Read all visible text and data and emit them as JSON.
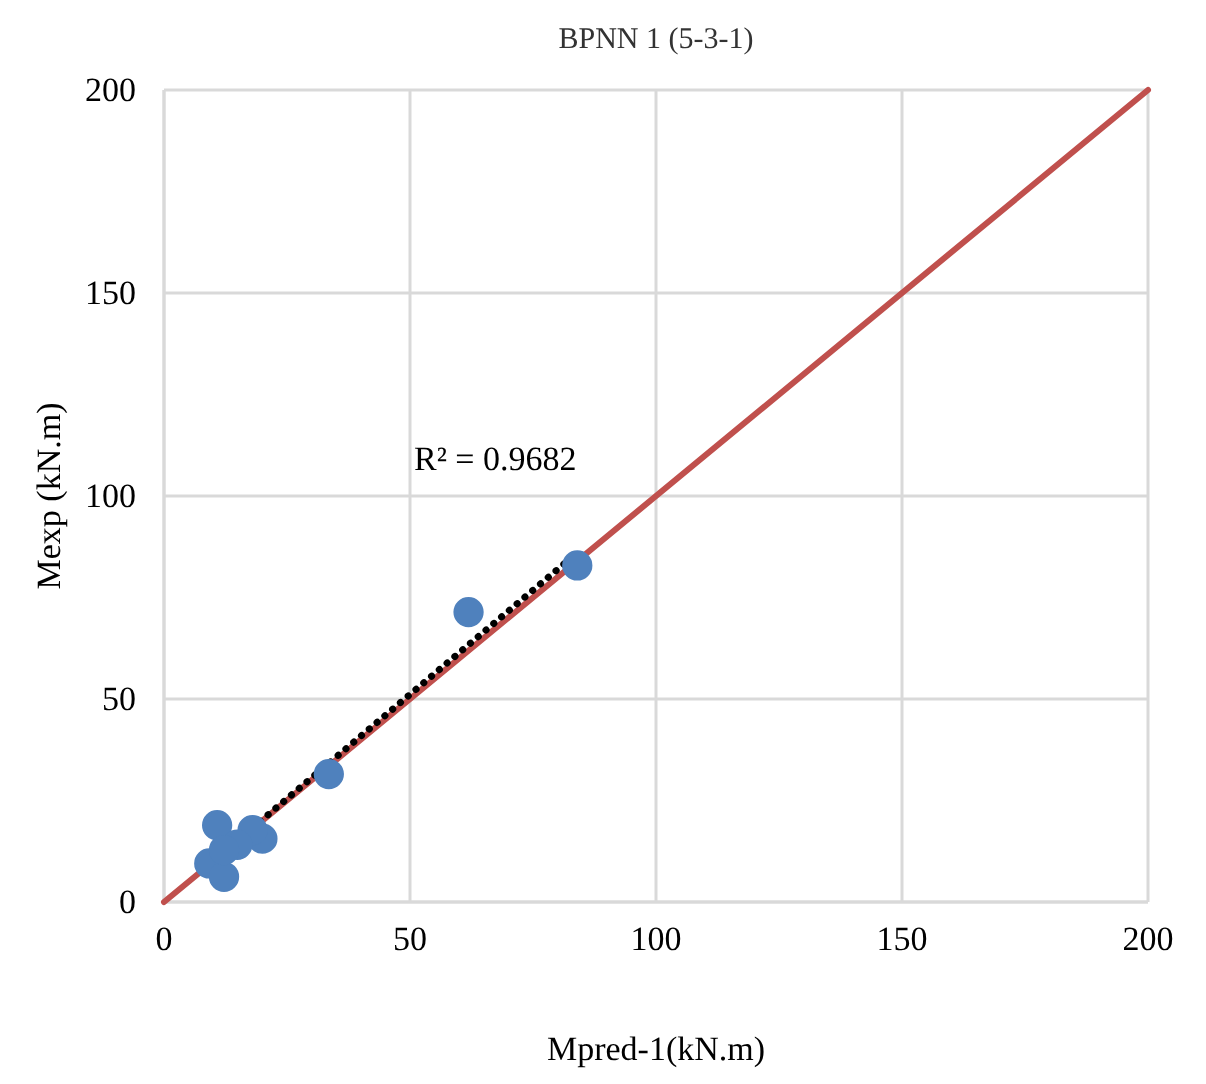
{
  "chart_data": {
    "type": "scatter",
    "title": "BPNN 1 (5-3-1)",
    "xlabel": "Mpred-1(kN.m)",
    "ylabel": "Mexp (kN.m)",
    "xlim": [
      0,
      200
    ],
    "ylim": [
      0,
      200
    ],
    "xticks": [
      0,
      50,
      100,
      150,
      200
    ],
    "yticks": [
      0,
      50,
      100,
      150,
      200
    ],
    "grid": true,
    "series": [
      {
        "type": "line",
        "color": "#c0504d",
        "line_style": "solid",
        "marker": "none",
        "x": [
          0,
          200
        ],
        "values": [
          0,
          200
        ]
      },
      {
        "color": "#4f81bd",
        "marker": "circle",
        "x": [
          84.0,
          61.9,
          33.5,
          10.8,
          20.0,
          18.0,
          14.9,
          9.2,
          12.2,
          12.2
        ],
        "values": [
          82.9,
          71.4,
          31.5,
          18.9,
          15.6,
          17.7,
          14.1,
          9.5,
          6.2,
          12.8
        ]
      },
      {
        "type": "line",
        "color": "#000000",
        "line_style": "dotted",
        "marker": "none",
        "x": [
          8.5,
          83
        ],
        "values": [
          8.5,
          85
        ]
      }
    ],
    "annotations": [
      "R² = 0.9682"
    ]
  }
}
